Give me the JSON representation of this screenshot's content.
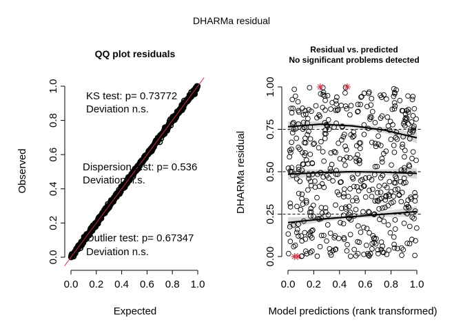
{
  "figure": {
    "title": "DHARMa residual"
  },
  "chart_data": [
    {
      "type": "scatter",
      "title": "QQ plot residuals",
      "xlabel": "Expected",
      "ylabel": "Observed",
      "xlim": [
        0,
        1
      ],
      "ylim": [
        0,
        1
      ],
      "x_ticks": [
        "0.0",
        "0.2",
        "0.4",
        "0.6",
        "0.8",
        "1.0"
      ],
      "y_ticks": [
        "0.0",
        "0.2",
        "0.4",
        "0.6",
        "0.8",
        "1.0"
      ],
      "reference_line": {
        "slope": 1,
        "intercept": 0,
        "color": "#cc3344"
      },
      "series_color": "#000000",
      "annotations": [
        {
          "text": "KS test: p= 0.73772"
        },
        {
          "text": "Deviation  n.s."
        },
        {
          "text": "Dispersion test: p= 0.536"
        },
        {
          "text": "Deviation  n.s."
        },
        {
          "text": "Outlier test: p= 0.67347"
        },
        {
          "text": "Deviation  n.s."
        }
      ]
    },
    {
      "type": "scatter",
      "title": "Residual vs. predicted",
      "subtitle": "No significant problems detected",
      "xlabel": "Model predictions (rank transformed)",
      "ylabel": "DHARMa residual",
      "xlim": [
        0,
        1
      ],
      "ylim": [
        0,
        1
      ],
      "x_ticks": [
        "0.0",
        "0.2",
        "0.4",
        "0.6",
        "0.8",
        "1.0"
      ],
      "y_ticks": [
        "0.00",
        "0.25",
        "0.50",
        "0.75",
        "1.00"
      ],
      "reference_lines_y": [
        0.25,
        0.5,
        0.75
      ],
      "quantile_curves": [
        {
          "quantile": 0.25,
          "x": [
            0,
            0.25,
            0.5,
            0.75,
            1.0
          ],
          "y": [
            0.2,
            0.22,
            0.235,
            0.25,
            0.265
          ]
        },
        {
          "quantile": 0.5,
          "x": [
            0,
            0.25,
            0.5,
            0.75,
            1.0
          ],
          "y": [
            0.485,
            0.495,
            0.5,
            0.497,
            0.49
          ]
        },
        {
          "quantile": 0.75,
          "x": [
            0,
            0.25,
            0.5,
            0.75,
            1.0
          ],
          "y": [
            0.765,
            0.78,
            0.77,
            0.745,
            0.7
          ]
        }
      ],
      "outliers": [
        {
          "x": 0.05,
          "y": 0.0
        },
        {
          "x": 0.075,
          "y": 0.0
        },
        {
          "x": 0.25,
          "y": 1.0
        },
        {
          "x": 0.46,
          "y": 1.0
        }
      ],
      "outlier_color": "#cc3344",
      "n_points": 500
    }
  ]
}
